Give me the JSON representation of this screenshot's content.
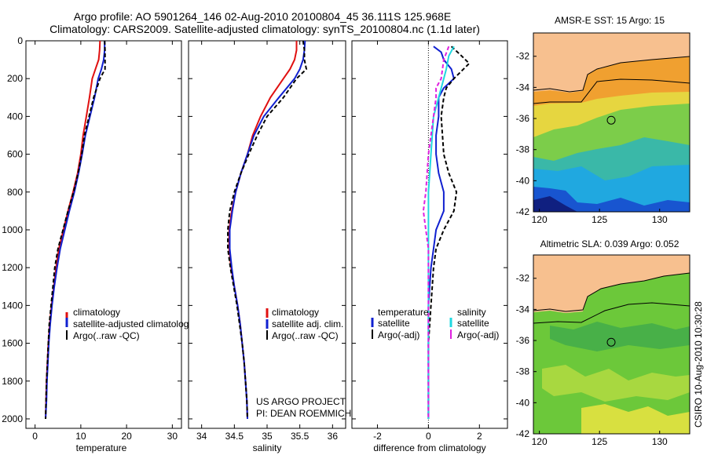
{
  "header": {
    "title_line1": "Argo profile: AO 5901264_146 02-Aug-2010 20100804_45 36.111S 125.968E",
    "title_line2": "Climatology: CARS2009. Satellite-adjusted climatology: synTS_20100804.nc (1.1d later)"
  },
  "credit": {
    "project": "US ARGO PROJECT",
    "pi": "PI: DEAN ROEMMICH",
    "source": "CSIRO 10-Aug-2010 10:30:28"
  },
  "colors": {
    "climatology": "#e01010",
    "satellite": "#1020d0",
    "argo": "#000000",
    "sat_salinity": "#20d8e0",
    "argo_salinity": "#e020e0"
  },
  "chart_data": [
    {
      "type": "line",
      "panel": "temperature",
      "xlabel": "temperature",
      "ylabel": "",
      "xlim": [
        -2,
        32
      ],
      "ylim": [
        2050,
        0
      ],
      "xticks": [
        0,
        10,
        20,
        30
      ],
      "yticks": [
        0,
        200,
        400,
        600,
        800,
        1000,
        1200,
        1400,
        1600,
        1800,
        2000
      ],
      "legend": {
        "placement": "bottom-right",
        "entries": [
          "climatology",
          "satellite-adjusted climatology",
          "Argo(..raw -QC)"
        ]
      },
      "series": [
        {
          "name": "climatology",
          "color_key": "climatology",
          "dash": "",
          "points": [
            [
              14.2,
              0
            ],
            [
              14.1,
              50
            ],
            [
              13.9,
              100
            ],
            [
              13.2,
              150
            ],
            [
              12.5,
              200
            ],
            [
              11.9,
              300
            ],
            [
              11.2,
              400
            ],
            [
              10.5,
              500
            ],
            [
              10.0,
              600
            ],
            [
              9.3,
              700
            ],
            [
              8.3,
              800
            ],
            [
              7.2,
              900
            ],
            [
              6.2,
              1000
            ],
            [
              5.2,
              1100
            ],
            [
              4.6,
              1200
            ],
            [
              4.1,
              1300
            ],
            [
              3.6,
              1400
            ],
            [
              3.2,
              1500
            ],
            [
              2.9,
              1600
            ],
            [
              2.7,
              1700
            ],
            [
              2.5,
              1800
            ],
            [
              2.4,
              1900
            ],
            [
              2.3,
              2000
            ]
          ]
        },
        {
          "name": "satellite-adjusted climatology",
          "color_key": "satellite",
          "dash": "",
          "points": [
            [
              15.2,
              0
            ],
            [
              15.2,
              50
            ],
            [
              15.0,
              100
            ],
            [
              14.5,
              150
            ],
            [
              13.8,
              200
            ],
            [
              13.0,
              300
            ],
            [
              12.0,
              400
            ],
            [
              11.0,
              500
            ],
            [
              10.3,
              600
            ],
            [
              9.5,
              700
            ],
            [
              8.6,
              800
            ],
            [
              7.5,
              900
            ],
            [
              6.5,
              1000
            ],
            [
              5.5,
              1100
            ],
            [
              4.8,
              1200
            ],
            [
              4.2,
              1300
            ],
            [
              3.7,
              1400
            ],
            [
              3.3,
              1500
            ],
            [
              3.0,
              1600
            ],
            [
              2.8,
              1700
            ],
            [
              2.6,
              1800
            ],
            [
              2.5,
              1900
            ],
            [
              2.3,
              2000
            ]
          ]
        },
        {
          "name": "Argo(..raw -QC)",
          "color_key": "argo",
          "dash": "5,3",
          "points": [
            [
              15.2,
              0
            ],
            [
              15.3,
              50
            ],
            [
              15.3,
              100
            ],
            [
              15.3,
              150
            ],
            [
              14.2,
              200
            ],
            [
              12.8,
              300
            ],
            [
              11.8,
              400
            ],
            [
              10.8,
              500
            ],
            [
              10.2,
              600
            ],
            [
              9.4,
              700
            ],
            [
              8.4,
              800
            ],
            [
              7.2,
              900
            ],
            [
              6.1,
              1000
            ],
            [
              5.0,
              1100
            ],
            [
              4.3,
              1200
            ],
            [
              3.9,
              1300
            ],
            [
              3.5,
              1400
            ],
            [
              3.1,
              1500
            ],
            [
              2.9,
              1600
            ],
            [
              2.7,
              1700
            ],
            [
              2.5,
              1800
            ],
            [
              2.4,
              1900
            ],
            [
              2.3,
              2000
            ]
          ]
        }
      ]
    },
    {
      "type": "line",
      "panel": "salinity",
      "xlabel": "salinity",
      "ylabel": "",
      "xlim": [
        33.8,
        36.2
      ],
      "ylim": [
        2050,
        0
      ],
      "xticks": [
        34,
        34.5,
        35,
        35.5,
        36
      ],
      "xtick_labels": [
        "34",
        "34.5",
        "35",
        "35.5",
        "36"
      ],
      "yticks": [
        0,
        200,
        400,
        600,
        800,
        1000,
        1200,
        1400,
        1600,
        1800,
        2000
      ],
      "legend": {
        "placement": "bottom-right",
        "entries": [
          "climatology",
          "satellite adj. clim.",
          "Argo(..raw -QC)"
        ]
      },
      "series": [
        {
          "name": "climatology",
          "color_key": "climatology",
          "dash": "",
          "points": [
            [
              35.45,
              0
            ],
            [
              35.45,
              50
            ],
            [
              35.42,
              100
            ],
            [
              35.35,
              150
            ],
            [
              35.25,
              200
            ],
            [
              35.05,
              300
            ],
            [
              34.9,
              400
            ],
            [
              34.78,
              500
            ],
            [
              34.7,
              600
            ],
            [
              34.6,
              700
            ],
            [
              34.52,
              800
            ],
            [
              34.46,
              900
            ],
            [
              34.42,
              1000
            ],
            [
              34.42,
              1100
            ],
            [
              34.45,
              1200
            ],
            [
              34.5,
              1300
            ],
            [
              34.55,
              1400
            ],
            [
              34.59,
              1500
            ],
            [
              34.62,
              1600
            ],
            [
              34.65,
              1700
            ],
            [
              34.67,
              1800
            ],
            [
              34.69,
              1900
            ],
            [
              34.7,
              2000
            ]
          ]
        },
        {
          "name": "satellite adj. clim.",
          "color_key": "satellite",
          "dash": "",
          "points": [
            [
              35.58,
              0
            ],
            [
              35.57,
              50
            ],
            [
              35.55,
              100
            ],
            [
              35.5,
              150
            ],
            [
              35.42,
              200
            ],
            [
              35.18,
              300
            ],
            [
              34.95,
              400
            ],
            [
              34.8,
              500
            ],
            [
              34.7,
              600
            ],
            [
              34.6,
              700
            ],
            [
              34.52,
              800
            ],
            [
              34.47,
              900
            ],
            [
              34.43,
              1000
            ],
            [
              34.43,
              1100
            ],
            [
              34.46,
              1200
            ],
            [
              34.5,
              1300
            ],
            [
              34.55,
              1400
            ],
            [
              34.59,
              1500
            ],
            [
              34.62,
              1600
            ],
            [
              34.65,
              1700
            ],
            [
              34.67,
              1800
            ],
            [
              34.69,
              1900
            ],
            [
              34.7,
              2000
            ]
          ]
        },
        {
          "name": "Argo(..raw -QC)",
          "color_key": "argo",
          "dash": "5,3",
          "points": [
            [
              35.55,
              0
            ],
            [
              35.57,
              50
            ],
            [
              35.57,
              100
            ],
            [
              35.6,
              150
            ],
            [
              35.45,
              200
            ],
            [
              35.25,
              300
            ],
            [
              35.0,
              400
            ],
            [
              34.85,
              500
            ],
            [
              34.72,
              600
            ],
            [
              34.6,
              700
            ],
            [
              34.5,
              800
            ],
            [
              34.43,
              900
            ],
            [
              34.4,
              1000
            ],
            [
              34.4,
              1100
            ],
            [
              34.44,
              1200
            ],
            [
              34.49,
              1300
            ],
            [
              34.54,
              1400
            ],
            [
              34.58,
              1500
            ],
            [
              34.62,
              1600
            ],
            [
              34.65,
              1700
            ],
            [
              34.67,
              1800
            ],
            [
              34.69,
              1900
            ],
            [
              34.7,
              2000
            ]
          ]
        }
      ]
    },
    {
      "type": "line",
      "panel": "difference",
      "xlabel": "difference from climatology",
      "ylabel": "",
      "xlim": [
        -3,
        3.1
      ],
      "ylim": [
        2050,
        0
      ],
      "xticks": [
        -2,
        0,
        2
      ],
      "yticks": [
        0,
        200,
        400,
        600,
        800,
        1000,
        1200,
        1400,
        1600,
        1800,
        2000
      ],
      "zero_line": 0,
      "legend": {
        "placement": "bottom",
        "columns": [
          {
            "heading": "temperature",
            "entries": [
              "satellite",
              "Argo(-adj)"
            ]
          },
          {
            "heading": "salinity",
            "entries": [
              "satellite",
              "Argo(-adj)"
            ]
          }
        ]
      },
      "series": [
        {
          "name": "temperature satellite",
          "color_key": "satellite",
          "dash": "",
          "points": [
            [
              0.2,
              30
            ],
            [
              0.5,
              60
            ],
            [
              0.6,
              100
            ],
            [
              0.9,
              150
            ],
            [
              1.0,
              200
            ],
            [
              0.6,
              250
            ],
            [
              0.4,
              300
            ],
            [
              0.4,
              400
            ],
            [
              0.3,
              500
            ],
            [
              0.3,
              600
            ],
            [
              0.4,
              700
            ],
            [
              0.6,
              800
            ],
            [
              0.6,
              900
            ],
            [
              0.3,
              1000
            ],
            [
              0.2,
              1100
            ],
            [
              0.1,
              1200
            ],
            [
              0.0,
              1400
            ],
            [
              0.0,
              1600
            ],
            [
              0.0,
              1800
            ],
            [
              0.0,
              2000
            ]
          ]
        },
        {
          "name": "temperature Argo(-adj)",
          "color_key": "argo",
          "dash": "5,3",
          "points": [
            [
              0.9,
              30
            ],
            [
              1.3,
              80
            ],
            [
              1.6,
              120
            ],
            [
              1.0,
              200
            ],
            [
              0.7,
              250
            ],
            [
              0.6,
              300
            ],
            [
              0.5,
              400
            ],
            [
              0.6,
              600
            ],
            [
              0.8,
              700
            ],
            [
              1.1,
              800
            ],
            [
              1.0,
              900
            ],
            [
              0.6,
              1000
            ],
            [
              0.3,
              1100
            ],
            [
              0.2,
              1200
            ],
            [
              0.1,
              1400
            ],
            [
              0.0,
              1600
            ],
            [
              0.0,
              1800
            ],
            [
              0.0,
              2000
            ]
          ]
        },
        {
          "name": "salinity satellite",
          "color_key": "sat_salinity",
          "dash": "",
          "points": [
            [
              1.0,
              30
            ],
            [
              0.8,
              80
            ],
            [
              0.7,
              150
            ],
            [
              0.6,
              200
            ],
            [
              0.4,
              300
            ],
            [
              0.2,
              400
            ],
            [
              0.1,
              600
            ],
            [
              0.0,
              800
            ],
            [
              0.0,
              1000
            ],
            [
              0.0,
              1200
            ],
            [
              0.0,
              1600
            ],
            [
              0.0,
              2000
            ]
          ]
        },
        {
          "name": "salinity Argo(-adj)",
          "color_key": "argo_salinity",
          "dash": "5,3",
          "points": [
            [
              0.8,
              30
            ],
            [
              0.6,
              100
            ],
            [
              0.5,
              200
            ],
            [
              0.3,
              250
            ],
            [
              0.3,
              300
            ],
            [
              0.2,
              400
            ],
            [
              0.1,
              500
            ],
            [
              0.0,
              600
            ],
            [
              -0.1,
              800
            ],
            [
              -0.2,
              900
            ],
            [
              -0.1,
              1000
            ],
            [
              0.0,
              1100
            ],
            [
              0.0,
              1200
            ],
            [
              0.0,
              1600
            ],
            [
              0.0,
              2000
            ]
          ]
        }
      ]
    },
    {
      "type": "heatmap",
      "panel": "sst_map",
      "title": "AMSR-E SST: 15 Argo: 15",
      "xlim": [
        119.5,
        132.5
      ],
      "ylim": [
        -42,
        -30.5
      ],
      "xticks": [
        120,
        125,
        130
      ],
      "yticks": [
        -32,
        -34,
        -36,
        -38,
        -40,
        -42
      ],
      "marker": {
        "lon": 125.968,
        "lat": -36.111
      }
    },
    {
      "type": "heatmap",
      "panel": "sla_map",
      "title": "Altimetric SLA: 0.039 Argo: 0.052",
      "xlim": [
        119.5,
        132.5
      ],
      "ylim": [
        -42,
        -30.5
      ],
      "xticks": [
        120,
        125,
        130
      ],
      "yticks": [
        -32,
        -34,
        -36,
        -38,
        -40,
        -42
      ],
      "marker": {
        "lon": 125.968,
        "lat": -36.111
      }
    }
  ]
}
